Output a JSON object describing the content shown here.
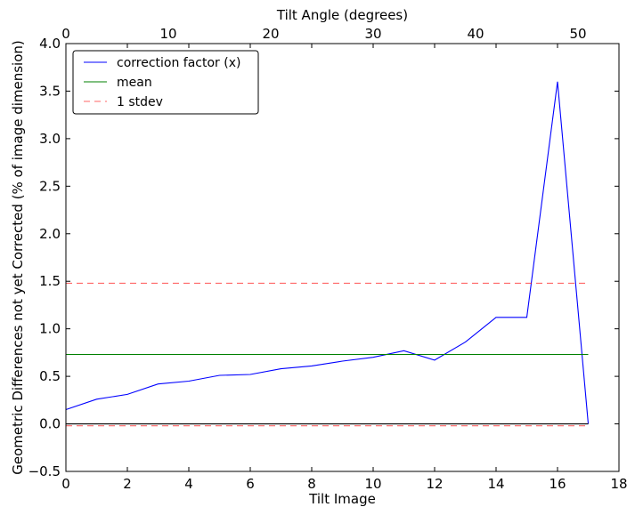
{
  "chart_data": {
    "type": "line",
    "xlabel": "Tilt Image",
    "ylabel": "Geometric Differences not yet Corrected (% of image dimension)",
    "top_xlabel": "Tilt Angle (degrees)",
    "xlim": [
      0,
      18
    ],
    "ylim": [
      -0.5,
      4.0
    ],
    "top_xlim": [
      0,
      54
    ],
    "x_ticks": [
      0,
      2,
      4,
      6,
      8,
      10,
      12,
      14,
      16,
      18
    ],
    "x_tick_labels": [
      "0",
      "2",
      "4",
      "6",
      "8",
      "10",
      "12",
      "14",
      "16",
      "18"
    ],
    "y_ticks": [
      -0.5,
      0.0,
      0.5,
      1.0,
      1.5,
      2.0,
      2.5,
      3.0,
      3.5,
      4.0
    ],
    "y_tick_labels": [
      "−0.5",
      "0.0",
      "0.5",
      "1.0",
      "1.5",
      "2.0",
      "2.5",
      "3.0",
      "3.5",
      "4.0"
    ],
    "top_ticks": [
      0,
      10,
      20,
      30,
      40,
      50
    ],
    "top_tick_labels": [
      "0",
      "10",
      "20",
      "30",
      "40",
      "50"
    ],
    "legend_position": "top-left",
    "grid": false,
    "series": [
      {
        "name": "correction factor (x)",
        "color": "#0000ff",
        "style": "solid",
        "x": [
          0,
          1,
          2,
          3,
          4,
          5,
          6,
          7,
          8,
          9,
          10,
          11,
          12,
          13,
          14,
          15,
          16,
          17
        ],
        "values": [
          0.15,
          0.26,
          0.31,
          0.42,
          0.45,
          0.51,
          0.52,
          0.58,
          0.61,
          0.66,
          0.7,
          0.77,
          0.67,
          0.86,
          1.12,
          1.12,
          3.6,
          0.0
        ]
      },
      {
        "name": "mean",
        "color": "#008000",
        "style": "solid",
        "x": [
          0,
          17
        ],
        "values": [
          0.73,
          0.73
        ]
      },
      {
        "name": "1 stdev",
        "color": "#ff0000",
        "style": "dashed",
        "x": [
          0,
          17
        ],
        "values": [
          1.48,
          1.48
        ]
      },
      {
        "name": "",
        "color": "#ff0000",
        "style": "dashed",
        "x": [
          0,
          17
        ],
        "values": [
          -0.02,
          -0.02
        ]
      },
      {
        "name": "",
        "color": "#000000",
        "style": "solid",
        "x": [
          0,
          17
        ],
        "values": [
          0.0,
          0.0
        ]
      }
    ]
  }
}
